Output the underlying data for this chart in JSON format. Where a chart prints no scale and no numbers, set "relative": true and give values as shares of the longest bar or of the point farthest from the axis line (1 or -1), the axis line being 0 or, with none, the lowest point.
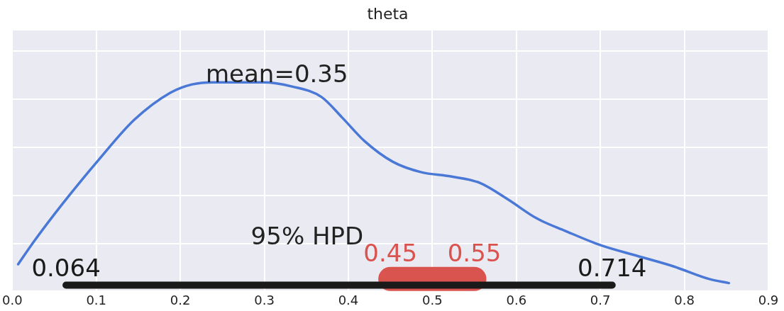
{
  "chart_data": {
    "type": "line",
    "title": "theta",
    "relative": true,
    "x": [
      0.007,
      0.026,
      0.06,
      0.103,
      0.145,
      0.188,
      0.214,
      0.239,
      0.265,
      0.299,
      0.333,
      0.368,
      0.393,
      0.419,
      0.453,
      0.487,
      0.522,
      0.556,
      0.59,
      0.624,
      0.658,
      0.701,
      0.744,
      0.787,
      0.829,
      0.853
    ],
    "series": [
      {
        "color": "#4a78d6",
        "values": [
          0.13,
          0.24,
          0.42,
          0.63,
          0.82,
          0.95,
          0.99,
          1,
          1,
          1,
          0.98,
          0.93,
          0.83,
          0.72,
          0.62,
          0.57,
          0.55,
          0.52,
          0.44,
          0.35,
          0.29,
          0.22,
          0.17,
          0.12,
          0.06,
          0.04
        ]
      },
      {
        "color": "#1a1a1a",
        "x": [
          0.064,
          0.714
        ],
        "values": [
          0.03,
          0.03
        ]
      },
      {
        "color": "#d9534f",
        "x": [
          0.45,
          0.55
        ],
        "values": [
          0.06,
          0.06
        ]
      }
    ],
    "xlim": [
      0,
      0.9
    ],
    "xticks": [
      {
        "value": 0,
        "label": "0.0"
      },
      0.1,
      0.2,
      0.3,
      0.4,
      0.5,
      0.6,
      0.7,
      0.8,
      0.9
    ],
    "grid": true,
    "marker": "none",
    "line_style": "solid",
    "legend": false,
    "annotations": [
      "mean=0.35",
      "95% HPD",
      {
        "text": "0.064",
        "x": 0.064,
        "y": 0.03
      },
      {
        "text": "0.714",
        "x": 0.714,
        "y": 0.03
      },
      {
        "text": "0.45",
        "x": 0.45,
        "y": 0.06
      },
      {
        "text": "0.55",
        "x": 0.55,
        "y": 0.06
      }
    ]
  }
}
